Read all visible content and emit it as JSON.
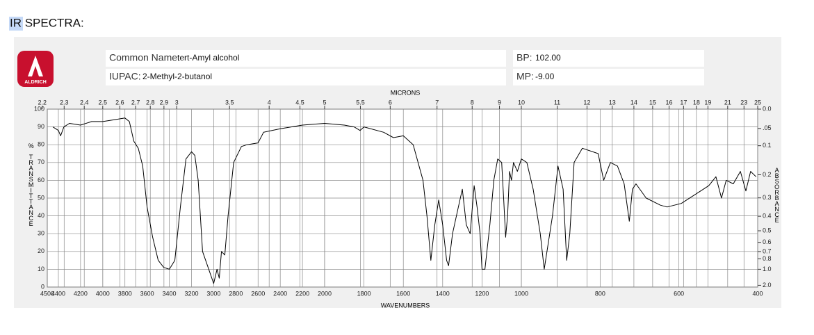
{
  "heading": "IR SPECTRA:",
  "logo": "ALDRICH",
  "compound": {
    "common_name_label": "Common Name:",
    "common_name": "tert-Amyl alcohol",
    "iupac_label": "IUPAC:",
    "iupac": "2-Methyl-2-butanol",
    "bp_label": "BP:",
    "bp": "102.00",
    "mp_label": "MP:",
    "mp": "-9.00"
  },
  "chart_data": {
    "type": "line",
    "xlabel": "WAVENUMBERS",
    "x2label": "MICRONS",
    "ylabel": "% TRANSMITTANCE",
    "y2label": "ABSORBANCE",
    "x": [
      4450,
      4400,
      4380,
      4350,
      4300,
      4200,
      4100,
      4000,
      3900,
      3800,
      3760,
      3720,
      3680,
      3640,
      3600,
      3550,
      3500,
      3450,
      3400,
      3350,
      3300,
      3250,
      3200,
      3170,
      3140,
      3100,
      3000,
      2970,
      2950,
      2930,
      2900,
      2870,
      2820,
      2750,
      2700,
      2600,
      2550,
      2400,
      2200,
      2000,
      1900,
      1850,
      1820,
      1800,
      1700,
      1650,
      1600,
      1550,
      1500,
      1480,
      1460,
      1440,
      1420,
      1400,
      1380,
      1370,
      1350,
      1320,
      1300,
      1280,
      1260,
      1240,
      1225,
      1210,
      1200,
      1185,
      1160,
      1140,
      1120,
      1100,
      1090,
      1080,
      1070,
      1060,
      1050,
      1040,
      1020,
      1000,
      986,
      970,
      952,
      942,
      921,
      907,
      894,
      885,
      877,
      866,
      845,
      805,
      791,
      774,
      756,
      739,
      726,
      718,
      709,
      683,
      647,
      630,
      594,
      559,
      524,
      506,
      492,
      480,
      462,
      444,
      430,
      418,
      404
    ],
    "values": [
      90,
      88,
      85,
      90,
      92,
      91,
      93,
      93,
      94,
      95,
      93,
      82,
      78,
      68,
      45,
      28,
      15,
      11,
      10,
      15,
      45,
      72,
      76,
      74,
      60,
      20,
      2,
      10,
      5,
      20,
      18,
      40,
      70,
      79,
      80,
      81,
      87,
      89,
      91,
      92,
      91,
      90,
      88,
      90,
      87,
      84,
      85,
      80,
      60,
      40,
      15,
      35,
      49,
      35,
      15,
      12,
      30,
      45,
      55,
      35,
      30,
      57,
      45,
      30,
      10,
      10,
      35,
      60,
      72,
      70,
      50,
      28,
      40,
      65,
      60,
      70,
      65,
      72,
      70,
      55,
      30,
      10,
      40,
      68,
      55,
      15,
      30,
      70,
      78,
      75,
      60,
      70,
      68,
      58,
      37,
      55,
      58,
      50,
      46,
      45,
      47,
      52,
      57,
      62,
      50,
      60,
      58,
      65,
      54,
      65,
      62
    ],
    "color": "#000000",
    "xlim": [
      4500,
      400
    ],
    "xscale_breaks": [
      2000,
      1000
    ],
    "xticks": [
      4500,
      4400,
      4200,
      4000,
      3800,
      3600,
      3400,
      3200,
      3000,
      2800,
      2600,
      2400,
      2200,
      2000,
      1800,
      1600,
      1400,
      1200,
      1000,
      800,
      600,
      400
    ],
    "x2ticks": [
      2.2,
      2.3,
      2.4,
      2.5,
      2.6,
      2.7,
      2.8,
      2.9,
      3,
      3.5,
      4,
      4.5,
      5,
      5.5,
      6,
      7,
      8,
      9,
      10,
      11,
      12,
      13,
      14,
      15,
      16,
      17,
      18,
      19,
      21,
      23,
      25
    ],
    "ylim": [
      0,
      100
    ],
    "yticks": [
      0,
      10,
      20,
      30,
      40,
      50,
      60,
      70,
      80,
      90,
      100
    ],
    "y2ticks": [
      {
        "value": 0,
        "label": "0.0"
      },
      {
        "value": 0.05,
        "label": ".05"
      },
      0.1,
      0.2,
      0.3,
      0.4,
      0.5,
      0.6,
      0.7,
      0.8,
      {
        "value": 1,
        "label": "1.0"
      },
      {
        "value": 2,
        "label": "2.0"
      }
    ],
    "grid": true
  }
}
